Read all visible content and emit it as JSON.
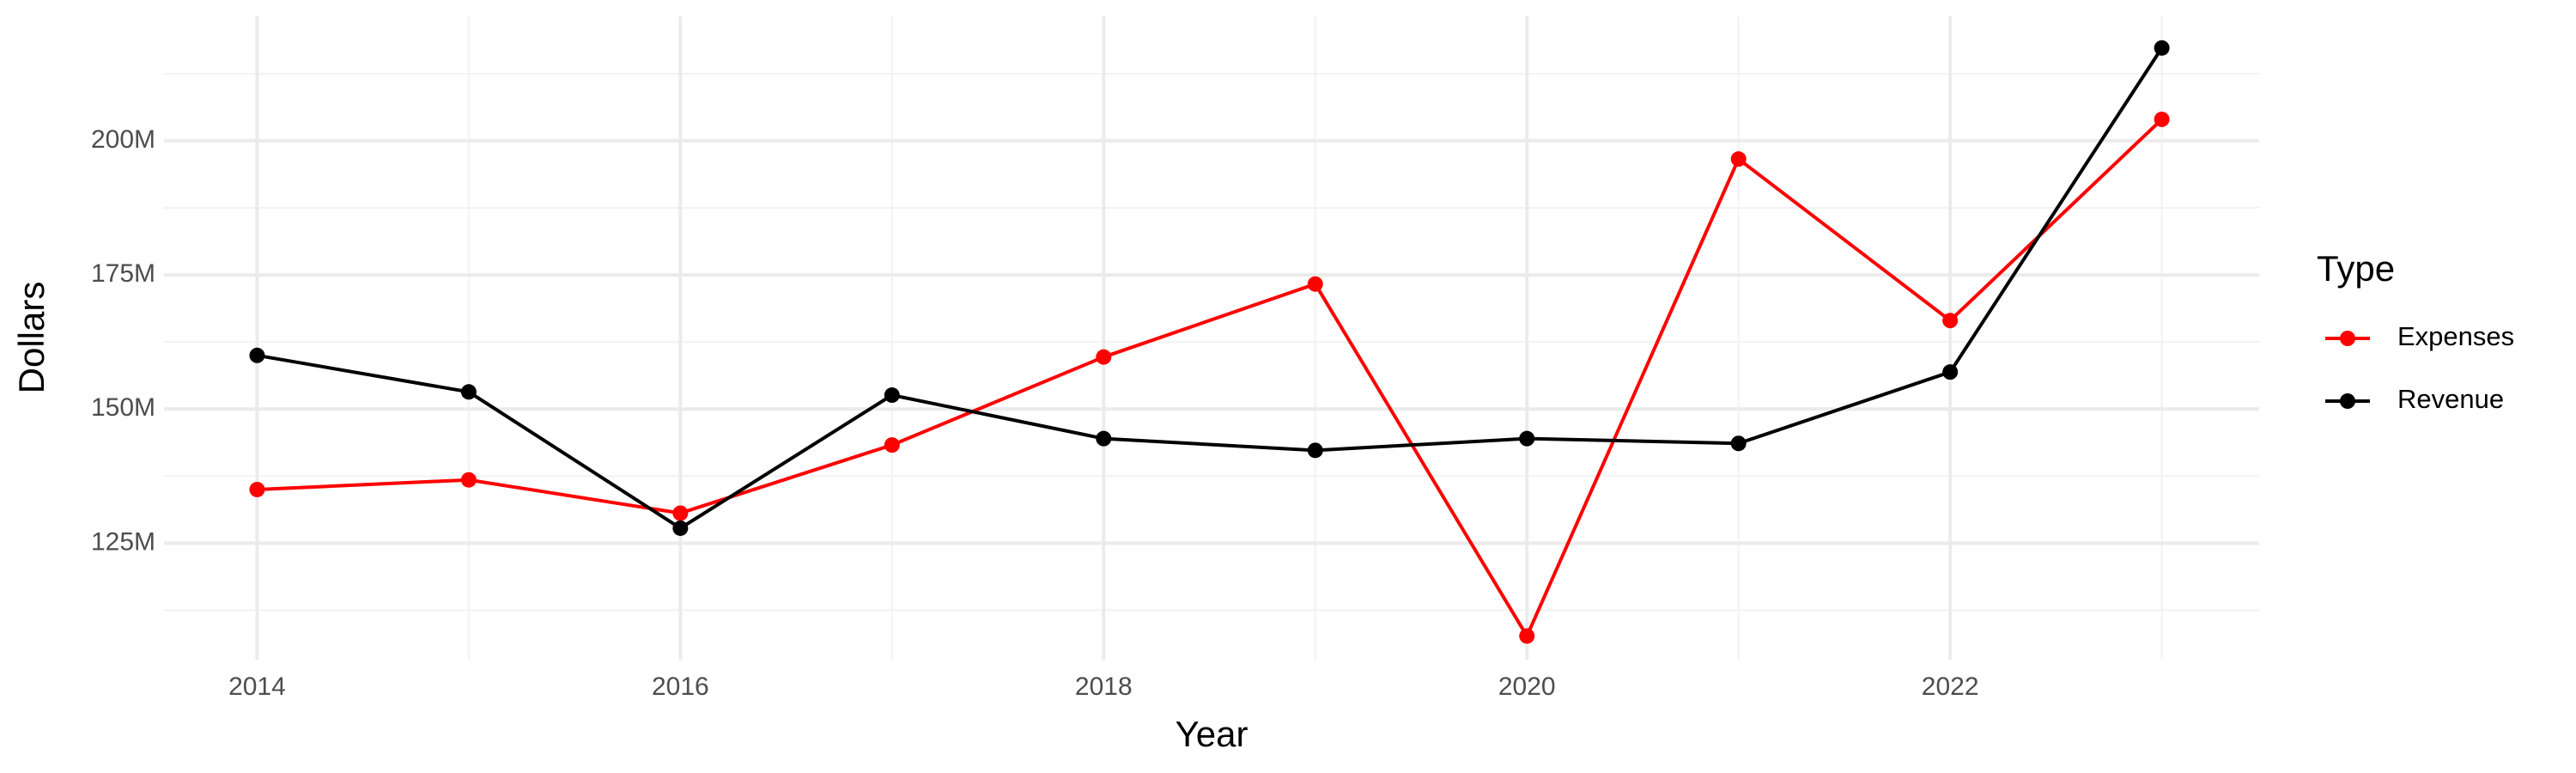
{
  "chart_data": {
    "type": "line",
    "x_label": "Year",
    "y_label": "Dollars",
    "legend_title": "Type",
    "legend_position": "right",
    "grid": true,
    "x": [
      2014,
      2015,
      2016,
      2017,
      2018,
      2019,
      2020,
      2021,
      2022,
      2023
    ],
    "series": [
      {
        "name": "Expenses",
        "color": "#ff0000",
        "values": [
          135000000,
          136800000,
          130600000,
          143300000,
          159700000,
          173300000,
          107700000,
          196600000,
          166500000,
          204000000
        ]
      },
      {
        "name": "Revenue",
        "color": "#000000",
        "values": [
          160000000,
          153200000,
          127800000,
          152600000,
          144500000,
          142300000,
          144500000,
          143600000,
          156900000,
          217300000
        ]
      }
    ],
    "xlim": [
      2013.56,
      2023.46
    ],
    "ylim": [
      103300000,
      223200000
    ],
    "xticks": [
      2014,
      2016,
      2018,
      2020,
      2022
    ],
    "yticks": [
      {
        "value": 125000000,
        "label": "125M"
      },
      {
        "value": 150000000,
        "label": "150M"
      },
      {
        "value": 175000000,
        "label": "175M"
      },
      {
        "value": 200000000,
        "label": "200M"
      }
    ]
  }
}
